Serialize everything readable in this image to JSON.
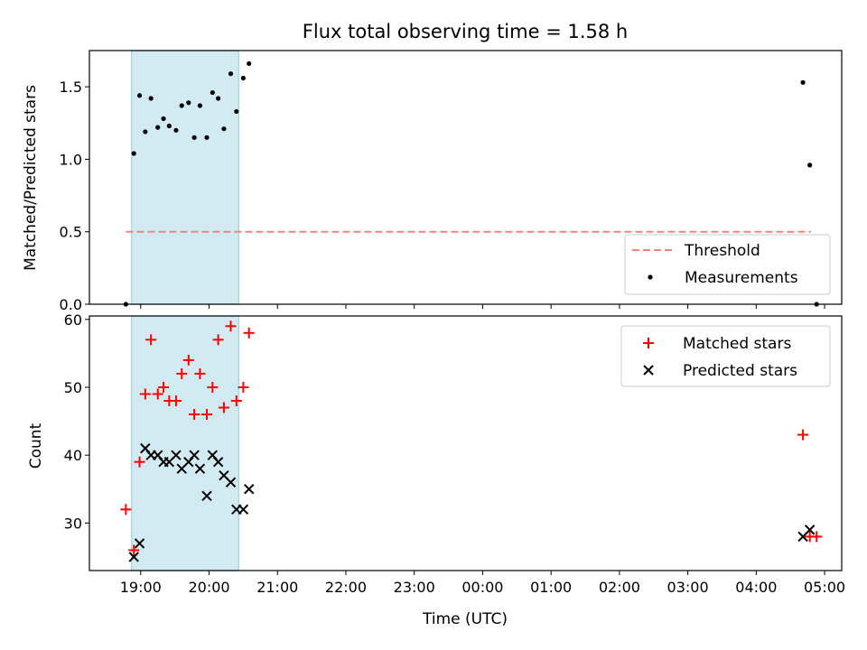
{
  "figure": {
    "title": "Flux total observing time = 1.58 h",
    "xlabel": "Time (UTC)"
  },
  "colors": {
    "observing_window": "#add8e6",
    "threshold": "#ff7f7f",
    "measurements": "#000000",
    "matched": "#ff0000",
    "predicted": "#000000"
  },
  "chart_data": [
    {
      "type": "scatter",
      "panel": "top",
      "title": "Flux total observing time = 1.58 h",
      "ylabel": "Matched/Predicted stars",
      "xlabel": "",
      "x_unit": "time UTC (hours, 24h clock, wrapping past midnight)",
      "xlim": [
        "18:15",
        "05:15"
      ],
      "ylim": [
        0,
        1.75
      ],
      "yticks": [
        0.0,
        0.5,
        1.0,
        1.5
      ],
      "yticklabels": [
        "0.0",
        "0.5",
        "1.0",
        "1.5"
      ],
      "xticklabels": [],
      "shaded_interval": [
        "18:52",
        "20:26"
      ],
      "legend": {
        "position": "lower right",
        "entries": [
          "Threshold",
          "Measurements"
        ]
      },
      "grid": false,
      "threshold": {
        "name": "Threshold",
        "y": 0.5,
        "x_range": [
          "18:47",
          "04:48"
        ]
      },
      "series": [
        {
          "name": "Measurements",
          "x": [
            "18:47",
            "18:54",
            "18:59",
            "19:04",
            "19:09",
            "19:15",
            "19:20",
            "19:25",
            "19:31",
            "19:36",
            "19:42",
            "19:47",
            "19:52",
            "19:58",
            "20:03",
            "20:08",
            "20:13",
            "20:19",
            "20:24",
            "20:30",
            "20:35",
            "04:41",
            "04:47",
            "04:53"
          ],
          "values": [
            0.0,
            1.04,
            1.44,
            1.19,
            1.42,
            1.22,
            1.28,
            1.23,
            1.2,
            1.37,
            1.39,
            1.15,
            1.37,
            1.15,
            1.46,
            1.42,
            1.21,
            1.59,
            1.33,
            1.56,
            1.66,
            1.53,
            0.96,
            0.0
          ]
        }
      ]
    },
    {
      "type": "scatter",
      "panel": "bottom",
      "title": "",
      "ylabel": "Count",
      "xlabel": "Time (UTC)",
      "x_unit": "time UTC (hours, 24h clock, wrapping past midnight)",
      "xlim": [
        "18:15",
        "05:15"
      ],
      "ylim": [
        23,
        60.5
      ],
      "yticks": [
        30,
        40,
        50,
        60
      ],
      "yticklabels": [
        "30",
        "40",
        "50",
        "60"
      ],
      "xticklabels": [
        "19:00",
        "20:00",
        "21:00",
        "22:00",
        "23:00",
        "00:00",
        "01:00",
        "02:00",
        "03:00",
        "04:00",
        "05:00"
      ],
      "shaded_interval": [
        "18:52",
        "20:26"
      ],
      "legend": {
        "position": "upper right",
        "entries": [
          "Matched stars",
          "Predicted stars"
        ]
      },
      "grid": false,
      "series": [
        {
          "name": "Matched stars",
          "marker": "+",
          "x": [
            "18:47",
            "18:54",
            "18:59",
            "19:04",
            "19:09",
            "19:15",
            "19:20",
            "19:25",
            "19:31",
            "19:36",
            "19:42",
            "19:47",
            "19:52",
            "19:58",
            "20:03",
            "20:08",
            "20:13",
            "20:19",
            "20:24",
            "20:30",
            "20:35",
            "04:41",
            "04:47",
            "04:53"
          ],
          "values": [
            32,
            26,
            39,
            49,
            57,
            49,
            50,
            48,
            48,
            52,
            54,
            46,
            52,
            46,
            50,
            57,
            47,
            59,
            48,
            50,
            58,
            43,
            28,
            28
          ]
        },
        {
          "name": "Predicted stars",
          "marker": "x",
          "x": [
            "18:54",
            "18:59",
            "19:04",
            "19:09",
            "19:15",
            "19:20",
            "19:25",
            "19:31",
            "19:36",
            "19:42",
            "19:47",
            "19:52",
            "19:58",
            "20:03",
            "20:08",
            "20:13",
            "20:19",
            "20:24",
            "20:30",
            "20:35",
            "04:41",
            "04:47"
          ],
          "values": [
            25,
            27,
            41,
            40,
            40,
            39,
            39,
            40,
            38,
            39,
            40,
            38,
            34,
            40,
            39,
            37,
            36,
            32,
            32,
            35,
            28,
            29
          ]
        }
      ]
    }
  ]
}
